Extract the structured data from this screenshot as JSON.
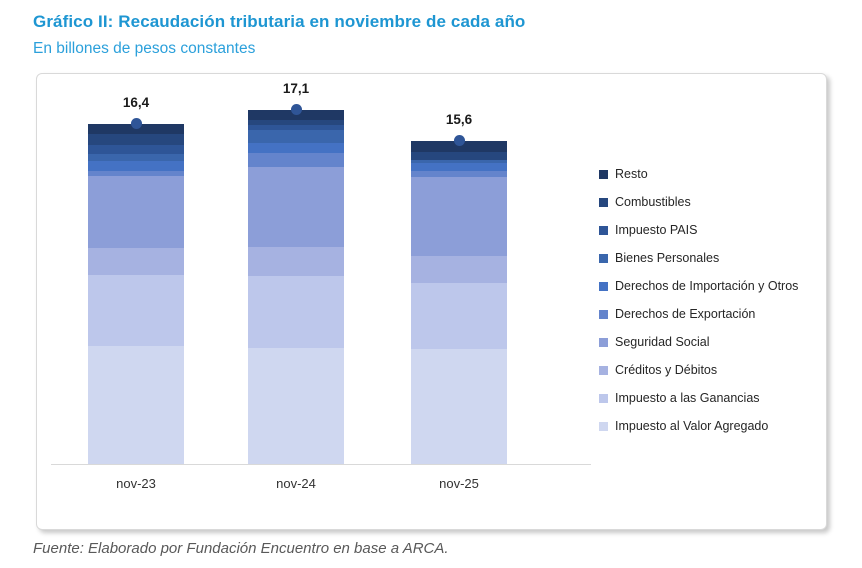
{
  "page": {
    "title": "Gráfico II: Recaudación tributaria en noviembre de cada año",
    "subtitle": "En billones de pesos constantes",
    "source_note": "Fuente: Elaborado por Fundación Encuentro en base a ARCA.",
    "colors": {
      "title": "#1E96D2",
      "subtitle": "#2BA0DB",
      "source_note": "#595959"
    }
  },
  "chart_data": {
    "type": "bar",
    "stacked": true,
    "title": "Recaudación tributaria en noviembre de cada año",
    "ylabel": "En billones de pesos constantes",
    "categories": [
      "nov-23",
      "nov-24",
      "nov-25"
    ],
    "totals": [
      16.4,
      17.1,
      15.6
    ],
    "total_labels": [
      "16,4",
      "17,1",
      "15,6"
    ],
    "legend_position": "right",
    "grid": false,
    "ylim": [
      0,
      18
    ],
    "axis_line_color": "#D9D9D9",
    "marker_color": "#2F5597",
    "series": [
      {
        "name": "Resto",
        "color": "#1F3864",
        "values": [
          0.5,
          0.5,
          0.55
        ]
      },
      {
        "name": "Combustibles",
        "color": "#26477E",
        "values": [
          0.5,
          0.25,
          0.4
        ]
      },
      {
        "name": "Impuesto PAIS",
        "color": "#2E5597",
        "values": [
          0.45,
          0.25,
          0.0
        ]
      },
      {
        "name": "Bienes Personales",
        "color": "#3A66AC",
        "values": [
          0.35,
          0.6,
          0.15
        ]
      },
      {
        "name": "Derechos de Importación y Otros",
        "color": "#4472C4",
        "values": [
          0.45,
          0.5,
          0.35
        ]
      },
      {
        "name": "Derechos de Exportación",
        "color": "#6484CC",
        "values": [
          0.25,
          0.65,
          0.3
        ]
      },
      {
        "name": "Seguridad Social",
        "color": "#8C9ED8",
        "values": [
          3.5,
          3.9,
          3.8
        ]
      },
      {
        "name": "Créditos y Débitos",
        "color": "#A6B2E1",
        "values": [
          1.3,
          1.4,
          1.3
        ]
      },
      {
        "name": "Impuesto a las Ganancias",
        "color": "#BDC7EB",
        "values": [
          3.4,
          3.45,
          3.2
        ]
      },
      {
        "name": "Impuesto al Valor Agregado",
        "color": "#CFD7F0",
        "values": [
          5.7,
          5.6,
          5.55
        ]
      }
    ]
  }
}
